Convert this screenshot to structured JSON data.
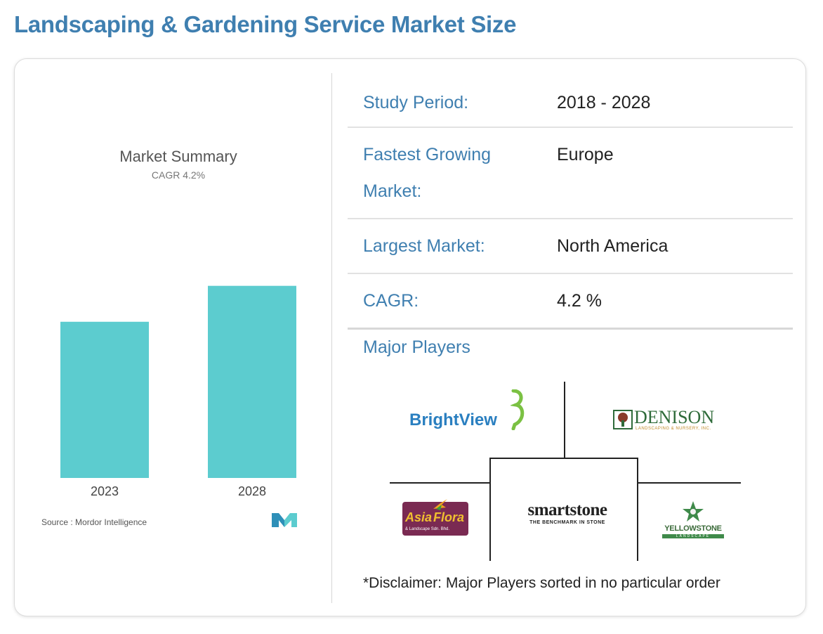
{
  "page_title": "Landscaping & Gardening Service Market Size",
  "chart_data": {
    "type": "bar",
    "title": "Market Summary",
    "subtitle": "CAGR 4.2%",
    "categories": [
      "2023",
      "2028"
    ],
    "values": [
      1.0,
      1.23
    ],
    "ylim": [
      0,
      1.35
    ],
    "grid": false,
    "bar_color": "#5ccccf"
  },
  "source": "Source : Mordor Intelligence",
  "info": {
    "study_period_label": "Study Period:",
    "study_period_value": "2018 - 2028",
    "fastest_label_line1": "Fastest Growing",
    "fastest_label_line2": "Market:",
    "fastest_value": "Europe",
    "largest_label": "Largest Market:",
    "largest_value": "North America",
    "cagr_label": "CAGR:",
    "cagr_value": "4.2 %"
  },
  "major_players": {
    "title": "Major Players",
    "brightview": "BrightView",
    "denison": "DENISON",
    "denison_sub": "LANDSCAPING & NURSERY, INC.",
    "asiaflora_1": "Asia",
    "asiaflora_2": "Flora",
    "asiaflora_sub": "& Landscape Sdn. Bhd.",
    "smartstone": "smartstone",
    "smartstone_sub": "THE BENCHMARK IN STONE",
    "yellowstone": "YELLOWSTONE",
    "yellowstone_sub": "LANDSCAPE"
  },
  "disclaimer": "*Disclaimer: Major Players sorted in no particular order",
  "colors": {
    "accent": "#3f7fb0",
    "bar": "#5ccccf"
  }
}
